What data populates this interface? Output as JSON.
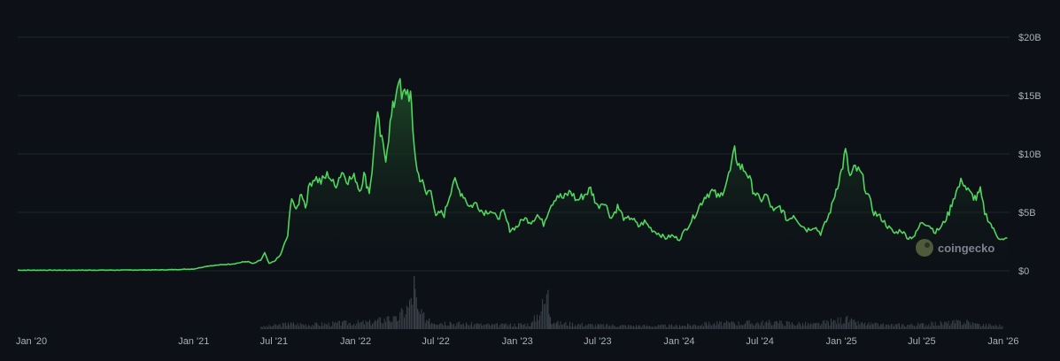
{
  "chart_data": {
    "type": "area",
    "title": "",
    "xlabel": "",
    "ylabel": "",
    "y_unit": "USD",
    "ylim": [
      0,
      20000000000
    ],
    "y_ticks": [
      {
        "value": 0,
        "label": "$0"
      },
      {
        "value": 5000000000,
        "label": "$5B"
      },
      {
        "value": 10000000000,
        "label": "$10B"
      },
      {
        "value": 15000000000,
        "label": "$15B"
      },
      {
        "value": 20000000000,
        "label": "$20B"
      }
    ],
    "x_range": [
      "2019-12-01",
      "2026-01-15"
    ],
    "x_ticks": [
      {
        "date": "2020-01-01",
        "label": "Jan '20"
      },
      {
        "date": "2021-01-01",
        "label": "Jan '21"
      },
      {
        "date": "2021-07-01",
        "label": "Jul '21"
      },
      {
        "date": "2022-01-01",
        "label": "Jan '22"
      },
      {
        "date": "2022-07-01",
        "label": "Jul '22"
      },
      {
        "date": "2023-01-01",
        "label": "Jan '23"
      },
      {
        "date": "2023-07-01",
        "label": "Jul '23"
      },
      {
        "date": "2024-01-01",
        "label": "Jan '24"
      },
      {
        "date": "2024-07-01",
        "label": "Jul '24"
      },
      {
        "date": "2025-01-01",
        "label": "Jan '25"
      },
      {
        "date": "2025-07-01",
        "label": "Jul '25"
      },
      {
        "date": "2026-01-01",
        "label": "Jan '26"
      }
    ],
    "grid": true,
    "colors": {
      "line": "#4ed55e",
      "area_top": "#1f4f28",
      "grid": "#1f2a22",
      "volume": "#3a414a",
      "background": "#0d1117"
    },
    "series": [
      {
        "name": "",
        "points": [
          [
            "2019-12-01",
            0.05
          ],
          [
            "2020-04-01",
            0.05
          ],
          [
            "2020-08-01",
            0.06
          ],
          [
            "2020-11-01",
            0.08
          ],
          [
            "2021-01-01",
            0.15
          ],
          [
            "2021-02-01",
            0.4
          ],
          [
            "2021-03-01",
            0.5
          ],
          [
            "2021-04-01",
            0.6
          ],
          [
            "2021-05-01",
            0.8
          ],
          [
            "2021-05-15",
            0.6
          ],
          [
            "2021-06-01",
            0.9
          ],
          [
            "2021-06-10",
            1.5
          ],
          [
            "2021-06-20",
            0.6
          ],
          [
            "2021-07-01",
            0.8
          ],
          [
            "2021-07-15",
            1.3
          ],
          [
            "2021-08-01",
            3.0
          ],
          [
            "2021-08-10",
            6.5
          ],
          [
            "2021-08-20",
            5.0
          ],
          [
            "2021-09-01",
            6.8
          ],
          [
            "2021-09-10",
            5.5
          ],
          [
            "2021-09-20",
            7.5
          ],
          [
            "2021-10-01",
            8.0
          ],
          [
            "2021-10-15",
            7.6
          ],
          [
            "2021-11-01",
            8.3
          ],
          [
            "2021-11-15",
            7.2
          ],
          [
            "2021-12-01",
            8.5
          ],
          [
            "2021-12-15",
            7.8
          ],
          [
            "2022-01-01",
            8.0
          ],
          [
            "2022-01-10",
            6.9
          ],
          [
            "2022-01-20",
            8.2
          ],
          [
            "2022-02-01",
            6.8
          ],
          [
            "2022-02-10",
            9.5
          ],
          [
            "2022-02-15",
            12.5
          ],
          [
            "2022-02-20",
            13.0
          ],
          [
            "2022-03-01",
            11.0
          ],
          [
            "2022-03-10",
            9.8
          ],
          [
            "2022-03-20",
            12.5
          ],
          [
            "2022-04-01",
            15.0
          ],
          [
            "2022-04-08",
            16.8
          ],
          [
            "2022-04-15",
            14.5
          ],
          [
            "2022-04-25",
            15.5
          ],
          [
            "2022-05-05",
            15.0
          ],
          [
            "2022-05-10",
            12.0
          ],
          [
            "2022-05-20",
            8.5
          ],
          [
            "2022-06-01",
            7.5
          ],
          [
            "2022-06-10",
            6.5
          ],
          [
            "2022-06-20",
            7.2
          ],
          [
            "2022-07-01",
            4.5
          ],
          [
            "2022-07-10",
            5.0
          ],
          [
            "2022-07-20",
            4.8
          ],
          [
            "2022-08-01",
            6.5
          ],
          [
            "2022-08-10",
            7.8
          ],
          [
            "2022-08-20",
            7.0
          ],
          [
            "2022-09-01",
            6.5
          ],
          [
            "2022-09-15",
            5.5
          ],
          [
            "2022-10-01",
            5.8
          ],
          [
            "2022-10-15",
            5.0
          ],
          [
            "2022-11-01",
            5.2
          ],
          [
            "2022-11-15",
            4.5
          ],
          [
            "2022-12-01",
            5.0
          ],
          [
            "2022-12-15",
            3.5
          ],
          [
            "2023-01-01",
            3.8
          ],
          [
            "2023-01-15",
            4.5
          ],
          [
            "2023-02-01",
            4.2
          ],
          [
            "2023-02-15",
            4.8
          ],
          [
            "2023-03-01",
            4.0
          ],
          [
            "2023-03-15",
            5.5
          ],
          [
            "2023-04-01",
            6.5
          ],
          [
            "2023-04-15",
            6.2
          ],
          [
            "2023-05-01",
            6.8
          ],
          [
            "2023-05-15",
            6.0
          ],
          [
            "2023-06-01",
            6.5
          ],
          [
            "2023-06-15",
            7.0
          ],
          [
            "2023-07-01",
            5.5
          ],
          [
            "2023-07-15",
            6.0
          ],
          [
            "2023-08-01",
            4.5
          ],
          [
            "2023-08-15",
            5.5
          ],
          [
            "2023-09-01",
            4.3
          ],
          [
            "2023-09-15",
            4.6
          ],
          [
            "2023-10-01",
            3.8
          ],
          [
            "2023-10-15",
            4.2
          ],
          [
            "2023-11-01",
            3.5
          ],
          [
            "2023-11-15",
            3.2
          ],
          [
            "2023-12-01",
            2.8
          ],
          [
            "2023-12-15",
            3.0
          ],
          [
            "2024-01-01",
            2.7
          ],
          [
            "2024-01-15",
            3.5
          ],
          [
            "2024-02-01",
            4.5
          ],
          [
            "2024-02-15",
            5.5
          ],
          [
            "2024-03-01",
            6.5
          ],
          [
            "2024-03-15",
            6.8
          ],
          [
            "2024-04-01",
            6.2
          ],
          [
            "2024-04-15",
            7.5
          ],
          [
            "2024-04-25",
            8.5
          ],
          [
            "2024-05-05",
            10.2
          ],
          [
            "2024-05-15",
            9.0
          ],
          [
            "2024-06-01",
            8.5
          ],
          [
            "2024-06-15",
            7.0
          ],
          [
            "2024-07-01",
            6.0
          ],
          [
            "2024-07-15",
            6.5
          ],
          [
            "2024-08-01",
            5.0
          ],
          [
            "2024-08-15",
            5.5
          ],
          [
            "2024-09-01",
            4.3
          ],
          [
            "2024-09-15",
            4.8
          ],
          [
            "2024-10-01",
            4.0
          ],
          [
            "2024-10-15",
            3.5
          ],
          [
            "2024-11-01",
            3.8
          ],
          [
            "2024-11-15",
            3.2
          ],
          [
            "2024-12-01",
            4.5
          ],
          [
            "2024-12-10",
            5.5
          ],
          [
            "2024-12-20",
            7.0
          ],
          [
            "2025-01-01",
            8.5
          ],
          [
            "2025-01-10",
            10.2
          ],
          [
            "2025-01-20",
            8.0
          ],
          [
            "2025-02-01",
            8.8
          ],
          [
            "2025-02-15",
            8.2
          ],
          [
            "2025-03-01",
            6.5
          ],
          [
            "2025-03-15",
            5.0
          ],
          [
            "2025-04-01",
            4.5
          ],
          [
            "2025-04-15",
            3.8
          ],
          [
            "2025-05-01",
            3.2
          ],
          [
            "2025-05-15",
            3.5
          ],
          [
            "2025-06-01",
            2.8
          ],
          [
            "2025-06-15",
            3.0
          ],
          [
            "2025-07-01",
            4.2
          ],
          [
            "2025-07-15",
            4.0
          ],
          [
            "2025-08-01",
            3.3
          ],
          [
            "2025-08-15",
            3.8
          ],
          [
            "2025-09-01",
            5.0
          ],
          [
            "2025-09-10",
            6.2
          ],
          [
            "2025-09-20",
            7.0
          ],
          [
            "2025-10-01",
            7.8
          ],
          [
            "2025-10-10",
            7.0
          ],
          [
            "2025-10-20",
            6.5
          ],
          [
            "2025-11-01",
            6.2
          ],
          [
            "2025-11-10",
            6.8
          ],
          [
            "2025-11-20",
            5.0
          ],
          [
            "2025-12-01",
            4.2
          ],
          [
            "2025-12-10",
            3.5
          ],
          [
            "2025-12-20",
            2.9
          ],
          [
            "2026-01-01",
            2.6
          ],
          [
            "2026-01-10",
            2.8
          ]
        ]
      }
    ],
    "volume": {
      "points": [
        [
          "2021-06-01",
          0.3
        ],
        [
          "2021-08-01",
          0.8
        ],
        [
          "2021-10-01",
          0.7
        ],
        [
          "2021-12-01",
          0.9
        ],
        [
          "2022-02-01",
          1.0
        ],
        [
          "2022-03-15",
          1.6
        ],
        [
          "2022-04-01",
          1.4
        ],
        [
          "2022-05-05",
          3.8
        ],
        [
          "2022-05-12",
          6.5
        ],
        [
          "2022-05-20",
          2.5
        ],
        [
          "2022-06-15",
          1.3
        ],
        [
          "2022-08-01",
          0.9
        ],
        [
          "2022-10-01",
          0.7
        ],
        [
          "2022-12-01",
          0.6
        ],
        [
          "2023-02-01",
          0.8
        ],
        [
          "2023-03-10",
          4.8
        ],
        [
          "2023-03-15",
          1.5
        ],
        [
          "2023-04-01",
          0.9
        ],
        [
          "2023-07-01",
          0.6
        ],
        [
          "2023-10-01",
          0.5
        ],
        [
          "2024-01-01",
          0.5
        ],
        [
          "2024-03-01",
          0.8
        ],
        [
          "2024-05-01",
          0.9
        ],
        [
          "2024-08-05",
          1.0
        ],
        [
          "2024-11-01",
          0.7
        ],
        [
          "2025-01-10",
          1.5
        ],
        [
          "2025-02-01",
          0.9
        ],
        [
          "2025-04-01",
          0.6
        ],
        [
          "2025-07-01",
          0.7
        ],
        [
          "2025-10-10",
          1.1
        ],
        [
          "2025-11-01",
          0.7
        ],
        [
          "2026-01-01",
          0.5
        ]
      ]
    }
  },
  "watermark": {
    "text": "coingecko",
    "icon": "gecko-logo-icon"
  }
}
